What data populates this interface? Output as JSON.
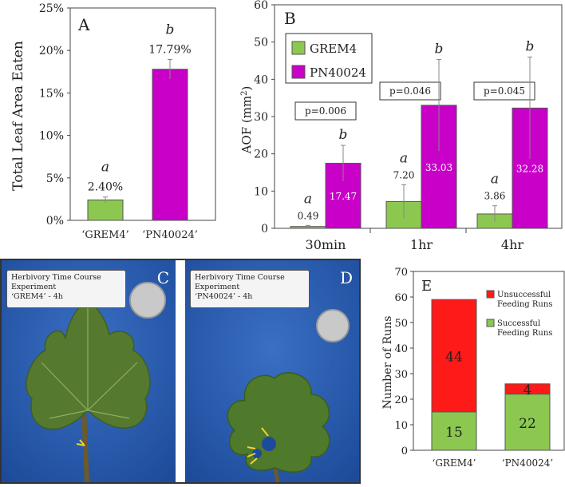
{
  "chart_data": [
    {
      "panel": "A",
      "type": "bar",
      "ylabel": "Total Leaf Area Eaten",
      "ylim": [
        0,
        25
      ],
      "yticks": [
        "0%",
        "5%",
        "10%",
        "15%",
        "20%",
        "25%"
      ],
      "categories": [
        "‘GREM4’",
        "‘PN40024’"
      ],
      "values": [
        2.4,
        17.79
      ],
      "errors": [
        0.35,
        1.15
      ],
      "value_labels": [
        "2.40%",
        "17.79%"
      ],
      "letters": [
        "a",
        "b"
      ],
      "colors": [
        "#8cc850",
        "#c800c8"
      ]
    },
    {
      "panel": "B",
      "type": "bar",
      "ylabel": "AOF (mm",
      "ylabel_sup": "2",
      "ylabel_end": ")",
      "ylim": [
        0,
        60
      ],
      "yticks": [
        "0",
        "10",
        "20",
        "30",
        "40",
        "50",
        "60"
      ],
      "categories": [
        "30min",
        "1hr",
        "4hr"
      ],
      "legend": [
        "GREM4",
        "PN40024"
      ],
      "series": [
        {
          "name": "GREM4",
          "color": "#8cc850",
          "values": [
            0.49,
            7.2,
            3.86
          ],
          "errors": [
            0.3,
            4.5,
            2.2
          ],
          "labels": [
            "0.49",
            "7.20",
            "3.86"
          ],
          "letters": [
            "a",
            "a",
            "a"
          ]
        },
        {
          "name": "PN40024",
          "color": "#c800c8",
          "values": [
            17.47,
            33.03,
            32.28
          ],
          "errors": [
            4.8,
            12.3,
            13.7
          ],
          "labels": [
            "17.47",
            "33.03",
            "32.28"
          ],
          "letters": [
            "b",
            "b",
            "b"
          ]
        }
      ],
      "pvalues": [
        "p=0.006",
        "p=0.046",
        "p=0.045"
      ]
    },
    {
      "panel": "E",
      "type": "bar",
      "stacked": true,
      "ylabel": "Number of Runs",
      "ylim": [
        0,
        70
      ],
      "yticks": [
        "0",
        "10",
        "20",
        "30",
        "40",
        "50",
        "60",
        "70"
      ],
      "categories": [
        "‘GREM4’",
        "‘PN40024’"
      ],
      "series": [
        {
          "name": "Successful Feeding Runs",
          "color": "#8cc850",
          "values": [
            15,
            22
          ]
        },
        {
          "name": "Unsuccessful Feeding Runs",
          "color": "#ff1a1a",
          "values": [
            44,
            4
          ]
        }
      ],
      "legend": [
        {
          "line1": "Unsuccessful",
          "line2": "Feeding Runs",
          "color": "#ff1a1a"
        },
        {
          "line1": "Successful",
          "line2": "Feeding Runs",
          "color": "#8cc850"
        }
      ]
    }
  ],
  "panel_letters": {
    "a": "A",
    "b": "B",
    "c": "C",
    "d": "D",
    "e": "E"
  },
  "photos": {
    "c": {
      "line1": "Herbivory Time Course",
      "line2": "Experiment",
      "line3": "‘GREM4’ - 4h"
    },
    "d": {
      "line1": "Herbivory Time Course",
      "line2": "Experiment",
      "line3": "‘PN40024’ - 4h"
    }
  }
}
